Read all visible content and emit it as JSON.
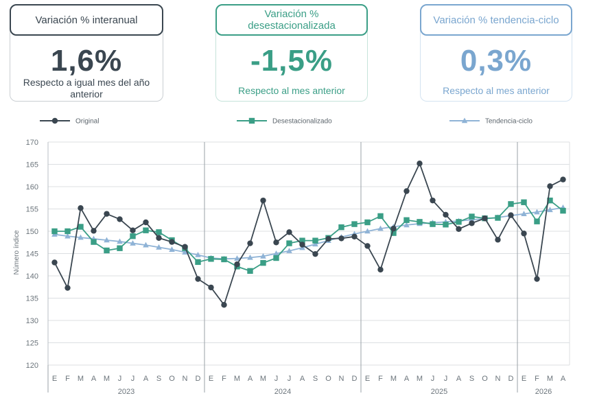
{
  "cards": [
    {
      "title": "Variación % interanual",
      "value": "1,6%",
      "subtitle": "Respecto a igual mes del año anterior",
      "color": "#3a4650"
    },
    {
      "title": "Variación % desestacionalizada",
      "value": "-1,5%",
      "subtitle": "Respecto al mes anterior",
      "color": "#3a9e86"
    },
    {
      "title": "Variación % tendencia-ciclo",
      "value": "0,3%",
      "subtitle": "Respecto al mes anterior",
      "color": "#7aa6cf"
    }
  ],
  "chart_data": {
    "type": "line",
    "ylabel": "Número índice",
    "xlabel": "",
    "ylim": [
      120,
      170
    ],
    "yticks": [
      120,
      125,
      130,
      135,
      140,
      145,
      150,
      155,
      160,
      165,
      170
    ],
    "grid": true,
    "legend_position": "top",
    "categories": [
      "E",
      "F",
      "M",
      "A",
      "M",
      "J",
      "J",
      "A",
      "S",
      "O",
      "N",
      "D",
      "E",
      "F",
      "M",
      "A",
      "M",
      "J",
      "J",
      "A",
      "S",
      "O",
      "N",
      "D",
      "E",
      "F",
      "M",
      "A",
      "M",
      "J",
      "J",
      "A",
      "S",
      "O",
      "N",
      "D",
      "E",
      "F",
      "M",
      "A"
    ],
    "years": [
      {
        "label": "2023",
        "start": 0,
        "end": 11
      },
      {
        "label": "2024",
        "start": 12,
        "end": 23
      },
      {
        "label": "2025",
        "start": 24,
        "end": 35
      },
      {
        "label": "2026",
        "start": 36,
        "end": 39
      }
    ],
    "series": [
      {
        "name": "Original",
        "color": "#3a4650",
        "marker": "circle",
        "values": [
          143.0,
          137.3,
          155.2,
          150.1,
          153.9,
          152.7,
          150.2,
          152.0,
          148.5,
          147.6,
          146.5,
          139.3,
          137.4,
          133.5,
          142.6,
          147.3,
          156.9,
          147.5,
          149.8,
          147.0,
          144.9,
          148.3,
          148.4,
          148.8,
          146.7,
          141.4,
          150.6,
          159.0,
          165.2,
          156.9,
          153.7,
          150.5,
          151.8,
          152.9,
          148.1,
          153.6,
          149.5,
          139.3,
          160.1,
          161.6
        ]
      },
      {
        "name": "Desestacionalizado",
        "color": "#3a9e86",
        "marker": "square",
        "values": [
          150.0,
          150.0,
          151.0,
          147.6,
          145.7,
          146.2,
          148.9,
          150.2,
          149.8,
          148.0,
          146.2,
          143.1,
          143.8,
          143.7,
          142.1,
          141.1,
          142.9,
          144.0,
          147.3,
          147.9,
          147.9,
          148.5,
          150.9,
          151.6,
          152.0,
          153.4,
          149.6,
          152.5,
          152.1,
          151.6,
          151.5,
          152.1,
          153.3,
          152.9,
          153.0,
          156.1,
          156.5,
          152.2,
          156.9,
          154.6
        ]
      },
      {
        "name": "Tendencia-ciclo",
        "color": "#8fb3d6",
        "marker": "triangle",
        "values": [
          149.3,
          148.9,
          148.6,
          148.3,
          148.0,
          147.7,
          147.3,
          146.9,
          146.4,
          145.9,
          145.3,
          144.7,
          144.0,
          143.8,
          143.9,
          144.1,
          144.4,
          145.0,
          145.6,
          146.3,
          147.1,
          147.9,
          148.7,
          149.4,
          150.0,
          150.6,
          151.0,
          151.4,
          151.7,
          151.9,
          152.1,
          152.3,
          152.6,
          152.8,
          153.1,
          153.5,
          153.9,
          154.3,
          154.8,
          155.3
        ]
      }
    ]
  }
}
